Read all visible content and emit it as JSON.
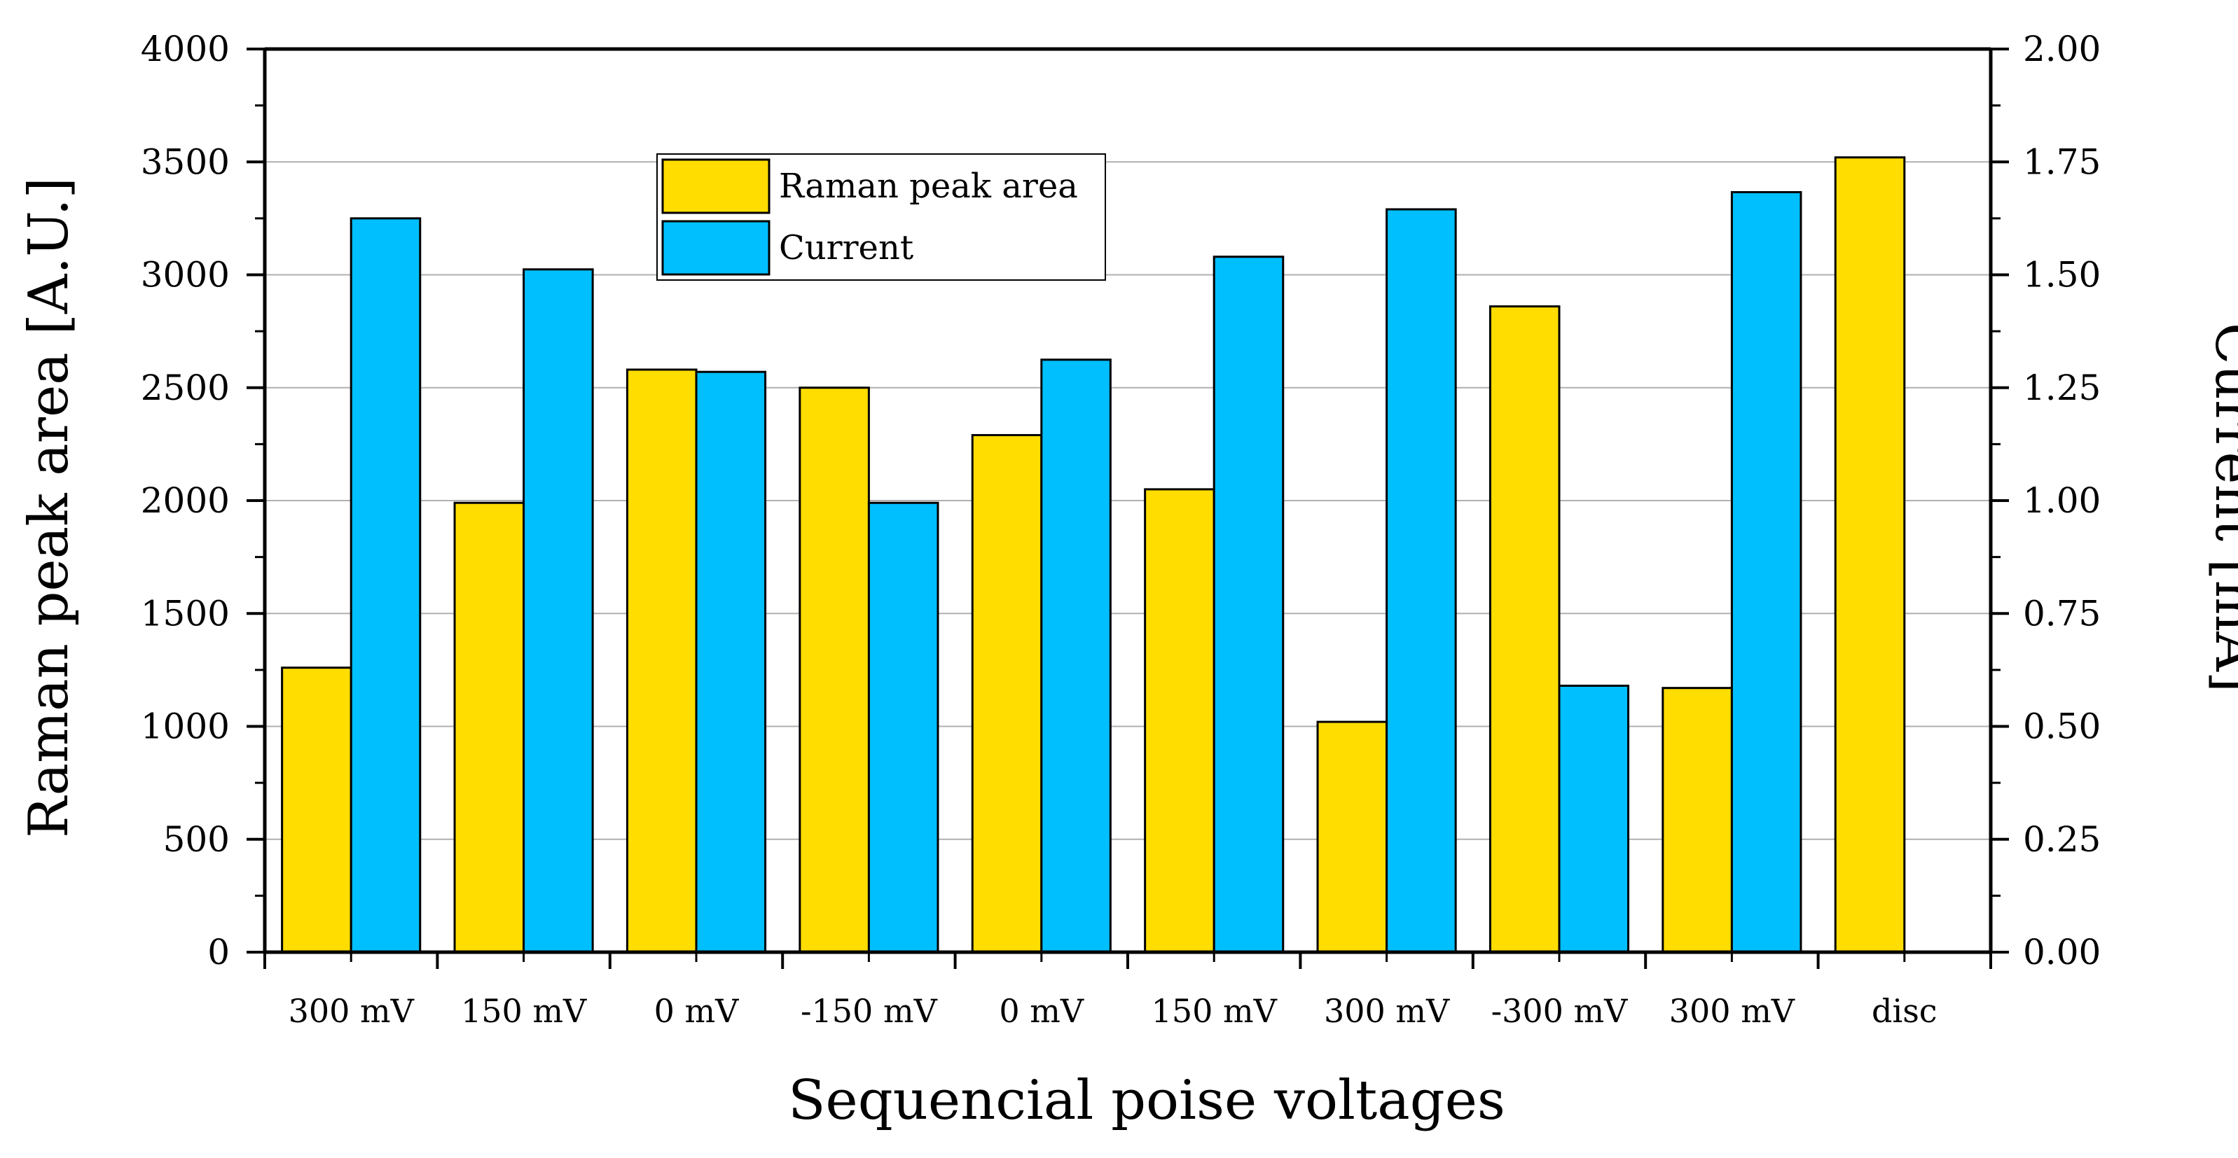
{
  "chart_data": {
    "type": "bar",
    "xlabel": "Sequencial poise voltages",
    "ylabel": "Raman peak area [A.U.]",
    "y2label": "Current [mA]",
    "categories": [
      "300 mV",
      "150 mV",
      "0 mV",
      "-150 mV",
      "0 mV",
      "150 mV",
      "300 mV",
      "-300 mV",
      "300 mV",
      "disc"
    ],
    "ylim": [
      0,
      4000
    ],
    "y2lim": [
      0,
      2
    ],
    "yticks": [
      "0",
      "500",
      "1000",
      "1500",
      "2000",
      "2500",
      "3000",
      "3500",
      "4000"
    ],
    "y2ticks": [
      "0.00",
      "0.25",
      "0.50",
      "0.75",
      "1.00",
      "1.25",
      "1.50",
      "1.75",
      "2.00"
    ],
    "grid": true,
    "legend_position": "top-left",
    "series": [
      {
        "name": "Raman peak area",
        "axis": "left",
        "color": "#FFDD00",
        "values": [
          1260,
          1990,
          2580,
          2500,
          2290,
          2050,
          1020,
          2860,
          1170,
          3520
        ]
      },
      {
        "name": "Current",
        "axis": "right",
        "color": "#00BFFF",
        "values": [
          1.625,
          1.512,
          1.285,
          0.995,
          1.312,
          1.54,
          1.645,
          0.59,
          1.683,
          null
        ]
      }
    ]
  }
}
